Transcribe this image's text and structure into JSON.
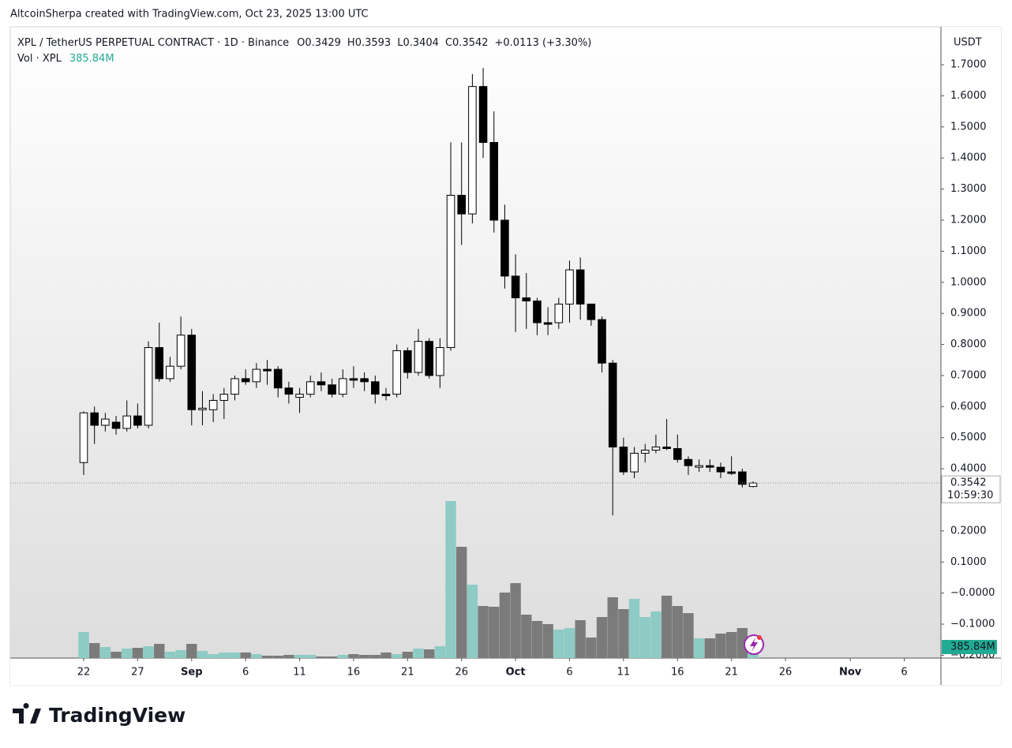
{
  "header": {
    "credit": "AltcoinSherpa created with TradingView.com, Oct 23, 2025 13:00 UTC"
  },
  "footer": {
    "brand": "TradingView"
  },
  "chart_data": {
    "type": "candlestick",
    "symbol": "XPL / TetherUS PERPETUAL CONTRACT · 1D · Binance",
    "ohlc_letters": [
      "O",
      "H",
      "L",
      "C"
    ],
    "change": "+0.0113 (+3.30%)",
    "volume_title": "Vol · XPL",
    "volume_label": "385.84M",
    "currency": "USDT",
    "countdown": "10:59:30",
    "open": [
      0.42,
      0.58,
      0.54,
      0.55,
      0.53,
      0.57,
      0.54,
      0.79,
      0.69,
      0.73,
      0.83,
      0.59,
      0.59,
      0.62,
      0.64,
      0.69,
      0.68,
      0.72,
      0.72,
      0.66,
      0.63,
      0.64,
      0.68,
      0.67,
      0.64,
      0.69,
      0.69,
      0.68,
      0.64,
      0.64,
      0.78,
      0.71,
      0.81,
      0.7,
      0.79,
      1.28,
      1.22,
      1.63,
      1.45,
      1.2,
      1.02,
      0.95,
      0.94,
      0.87,
      0.87,
      0.93,
      1.04,
      0.93,
      0.88,
      0.74,
      0.47,
      0.39,
      0.45,
      0.46,
      0.47,
      0.465,
      0.43,
      0.405,
      0.41,
      0.405,
      0.39,
      0.39,
      0.3429
    ],
    "high": [
      0.585,
      0.6,
      0.58,
      0.57,
      0.62,
      0.61,
      0.81,
      0.87,
      0.76,
      0.89,
      0.85,
      0.65,
      0.64,
      0.66,
      0.7,
      0.72,
      0.74,
      0.75,
      0.73,
      0.68,
      0.66,
      0.7,
      0.71,
      0.69,
      0.72,
      0.73,
      0.71,
      0.7,
      0.66,
      0.8,
      0.79,
      0.85,
      0.82,
      0.82,
      1.45,
      1.45,
      1.67,
      1.69,
      1.55,
      1.25,
      1.09,
      1.03,
      0.95,
      0.92,
      0.95,
      1.07,
      1.08,
      0.93,
      0.89,
      0.75,
      0.5,
      0.47,
      0.48,
      0.51,
      0.56,
      0.51,
      0.44,
      0.43,
      0.43,
      0.42,
      0.44,
      0.4,
      0.3593
    ],
    "low": [
      0.38,
      0.48,
      0.52,
      0.51,
      0.52,
      0.53,
      0.53,
      0.68,
      0.68,
      0.72,
      0.54,
      0.54,
      0.55,
      0.56,
      0.62,
      0.67,
      0.66,
      0.67,
      0.63,
      0.61,
      0.58,
      0.63,
      0.65,
      0.63,
      0.63,
      0.66,
      0.65,
      0.61,
      0.62,
      0.63,
      0.69,
      0.7,
      0.69,
      0.66,
      0.78,
      1.12,
      1.19,
      1.4,
      1.16,
      0.98,
      0.84,
      0.85,
      0.83,
      0.83,
      0.85,
      0.87,
      0.88,
      0.86,
      0.71,
      0.25,
      0.38,
      0.37,
      0.42,
      0.45,
      0.46,
      0.42,
      0.38,
      0.39,
      0.39,
      0.37,
      0.38,
      0.34,
      0.3404
    ],
    "close": [
      0.58,
      0.54,
      0.56,
      0.53,
      0.57,
      0.54,
      0.79,
      0.69,
      0.73,
      0.83,
      0.59,
      0.595,
      0.62,
      0.64,
      0.69,
      0.68,
      0.72,
      0.715,
      0.66,
      0.64,
      0.64,
      0.68,
      0.67,
      0.64,
      0.69,
      0.685,
      0.68,
      0.64,
      0.635,
      0.78,
      0.71,
      0.81,
      0.7,
      0.79,
      1.28,
      1.22,
      1.63,
      1.45,
      1.2,
      1.02,
      0.95,
      0.94,
      0.87,
      0.865,
      0.93,
      1.04,
      0.93,
      0.88,
      0.74,
      0.47,
      0.39,
      0.45,
      0.46,
      0.47,
      0.465,
      0.43,
      0.41,
      0.41,
      0.405,
      0.39,
      0.385,
      0.35,
      0.3542
    ],
    "volume": [
      990,
      570,
      420,
      240,
      360,
      390,
      450,
      540,
      240,
      300,
      540,
      270,
      150,
      210,
      210,
      210,
      150,
      90,
      90,
      120,
      120,
      120,
      60,
      60,
      120,
      150,
      120,
      120,
      210,
      150,
      240,
      360,
      330,
      450,
      5970,
      4230,
      2790,
      1980,
      1950,
      2490,
      2850,
      1650,
      1410,
      1290,
      1080,
      1140,
      1440,
      780,
      1560,
      2310,
      1860,
      2250,
      1560,
      1770,
      2370,
      1980,
      1710,
      750,
      750,
      930,
      990,
      1140,
      385.84
    ],
    "up_color": "#ffffff",
    "down_color": "#000000",
    "volume_up_color": "#8dcbc4",
    "volume_down_color": "#7b7b7b",
    "xlim": [
      -6.8,
      79.4
    ],
    "xticks": [
      {
        "value": 0,
        "label": "22"
      },
      {
        "value": 5,
        "label": "27"
      },
      {
        "value": 10,
        "label": "Sep"
      },
      {
        "value": 15,
        "label": "6"
      },
      {
        "value": 20,
        "label": "11"
      },
      {
        "value": 25,
        "label": "16"
      },
      {
        "value": 30,
        "label": "21"
      },
      {
        "value": 35,
        "label": "26"
      },
      {
        "value": 40,
        "label": "Oct"
      },
      {
        "value": 45,
        "label": "6"
      },
      {
        "value": 50,
        "label": "11"
      },
      {
        "value": 55,
        "label": "16"
      },
      {
        "value": 60,
        "label": "21"
      },
      {
        "value": 65,
        "label": "26"
      },
      {
        "value": 71,
        "label": "Nov"
      },
      {
        "value": 76,
        "label": "6"
      }
    ],
    "ylim": [
      -0.209,
      1.822
    ],
    "yticks": [
      {
        "value": 1.7,
        "label": "1.7000"
      },
      {
        "value": 1.6,
        "label": "1.6000"
      },
      {
        "value": 1.5,
        "label": "1.5000"
      },
      {
        "value": 1.4,
        "label": "1.4000"
      },
      {
        "value": 1.3,
        "label": "1.3000"
      },
      {
        "value": 1.2,
        "label": "1.2000"
      },
      {
        "value": 1.1,
        "label": "1.1000"
      },
      {
        "value": 1.0,
        "label": "1.0000"
      },
      {
        "value": 0.9,
        "label": "0.9000"
      },
      {
        "value": 0.8,
        "label": "0.8000"
      },
      {
        "value": 0.7,
        "label": "0.7000"
      },
      {
        "value": 0.6,
        "label": "0.6000"
      },
      {
        "value": 0.5,
        "label": "0.5000"
      },
      {
        "value": 0.4,
        "label": "0.4000"
      },
      {
        "value": 0.2,
        "label": "0.2000"
      },
      {
        "value": 0.1,
        "label": "0.1000"
      },
      {
        "value": 0,
        "label": "−0.0000"
      },
      {
        "value": -0.1,
        "label": "−0.1000"
      },
      {
        "value": -0.2,
        "label": "−0.2000"
      }
    ]
  }
}
